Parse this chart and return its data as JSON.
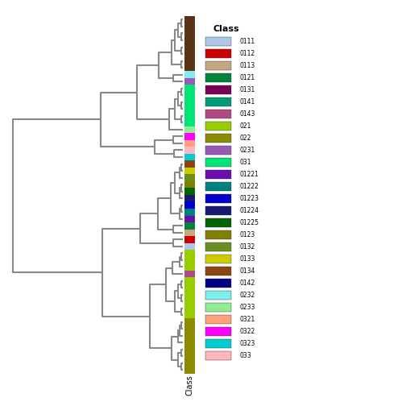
{
  "legend_title": "Class",
  "legend_entries": [
    {
      "name": "0111",
      "color": "#AEC7E8"
    },
    {
      "name": "0112",
      "color": "#CC0000"
    },
    {
      "name": "0113",
      "color": "#C4A882"
    },
    {
      "name": "0121",
      "color": "#00843D"
    },
    {
      "name": "0131",
      "color": "#7B0057"
    },
    {
      "name": "0141",
      "color": "#009B77"
    },
    {
      "name": "0143",
      "color": "#B04A87"
    },
    {
      "name": "021",
      "color": "#99CC00"
    },
    {
      "name": "022",
      "color": "#8B8B00"
    },
    {
      "name": "0231",
      "color": "#9B59B6"
    },
    {
      "name": "031",
      "color": "#00E676"
    },
    {
      "name": "01221",
      "color": "#6A0DAD"
    },
    {
      "name": "01222",
      "color": "#008080"
    },
    {
      "name": "01223",
      "color": "#0000CD"
    },
    {
      "name": "01224",
      "color": "#191970"
    },
    {
      "name": "01225",
      "color": "#006400"
    },
    {
      "name": "0123",
      "color": "#808000"
    },
    {
      "name": "0132",
      "color": "#6B8E23"
    },
    {
      "name": "0133",
      "color": "#CCCC00"
    },
    {
      "name": "0134",
      "color": "#8B4513"
    },
    {
      "name": "0142",
      "color": "#000080"
    },
    {
      "name": "0232",
      "color": "#7FEEEA"
    },
    {
      "name": "0233",
      "color": "#90EE90"
    },
    {
      "name": "0321",
      "color": "#FFA07A"
    },
    {
      "name": "0322",
      "color": "#FF00FF"
    },
    {
      "name": "0323",
      "color": "#00CED1"
    },
    {
      "name": "033",
      "color": "#FFB6C1"
    }
  ],
  "colorbar_segments": [
    {
      "color": "#AEC7E8",
      "n": 1
    },
    {
      "color": "#CC0000",
      "n": 1
    },
    {
      "color": "#C4A882",
      "n": 1
    },
    {
      "color": "#00843D",
      "n": 1
    },
    {
      "color": "#6A0DAD",
      "n": 1
    },
    {
      "color": "#008080",
      "n": 1
    },
    {
      "color": "#0000CD",
      "n": 1
    },
    {
      "color": "#191970",
      "n": 1
    },
    {
      "color": "#006400",
      "n": 1
    },
    {
      "color": "#808000",
      "n": 1
    },
    {
      "color": "#6B8E23",
      "n": 1
    },
    {
      "color": "#CCCC00",
      "n": 1
    },
    {
      "color": "#8B4513",
      "n": 1
    },
    {
      "color": "#B04A87",
      "n": 1
    },
    {
      "color": "#99CC00",
      "n": 9
    },
    {
      "color": "#8B8B00",
      "n": 8
    },
    {
      "color": "#5C3317",
      "n": 8
    },
    {
      "color": "#9B59B6",
      "n": 1
    },
    {
      "color": "#7FEEEA",
      "n": 1
    },
    {
      "color": "#90EE90",
      "n": 1
    },
    {
      "color": "#00E676",
      "n": 6
    },
    {
      "color": "#FFA07A",
      "n": 1
    },
    {
      "color": "#FF00FF",
      "n": 1
    },
    {
      "color": "#00CED1",
      "n": 1
    },
    {
      "color": "#FFB6C1",
      "n": 1
    }
  ],
  "dendrogram_leaves": 54,
  "fig_width": 5.04,
  "fig_height": 5.04,
  "dpi": 100
}
